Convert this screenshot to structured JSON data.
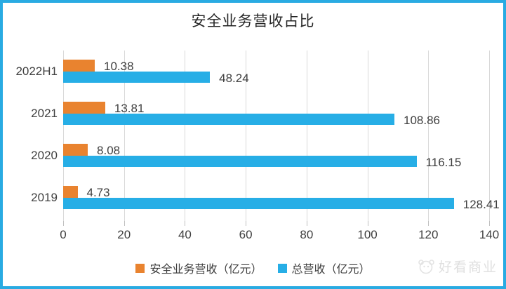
{
  "title": "安全业务营收占比",
  "chart_data": {
    "type": "bar",
    "orientation": "horizontal",
    "categories": [
      "2022H1",
      "2021",
      "2020",
      "2019"
    ],
    "series": [
      {
        "name": "安全业务营收（亿元）",
        "color": "#E9832F",
        "values": [
          10.38,
          13.81,
          8.08,
          4.73
        ]
      },
      {
        "name": "总营收（亿元）",
        "color": "#27AEE6",
        "values": [
          48.24,
          108.86,
          116.15,
          128.41
        ]
      }
    ],
    "xticks": [
      0,
      20,
      40,
      60,
      80,
      100,
      120,
      140
    ],
    "xlim": [
      0,
      140
    ],
    "grid": "vertical",
    "legend_position": "bottom"
  },
  "watermark": {
    "text": "好看商业"
  },
  "colors": {
    "border": "#29ABE2",
    "grid": "#D9D9D9",
    "tick": "#C0C0C0",
    "text": "#404040"
  }
}
